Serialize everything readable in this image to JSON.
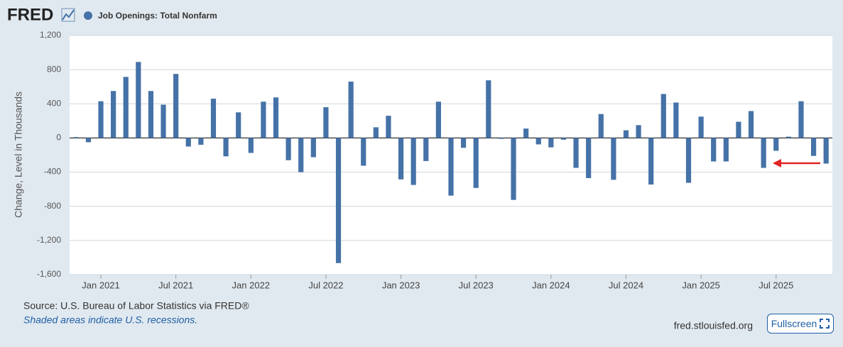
{
  "chart_data": {
    "type": "bar",
    "brand": "FRED",
    "title": "Job Openings: Total Nonfarm",
    "ylabel": "Change, Level in Thousands",
    "source": "Source: U.S. Bureau of Labor Statistics via FRED®",
    "note": "Shaded areas indicate U.S. recessions.",
    "site": "fred.stlouisfed.org",
    "button": "Fullscreen",
    "color": "#4572a7",
    "grid": true,
    "ylim": [
      -1600,
      1200
    ],
    "yticks": [
      {
        "value": 1200,
        "label": "1,200"
      },
      800,
      400,
      0,
      -400,
      -800,
      {
        "value": -1200,
        "label": "-1,200"
      },
      {
        "value": -1600,
        "label": "-1,600"
      }
    ],
    "categories": [
      null,
      null,
      "Jan 2021",
      null,
      null,
      null,
      null,
      null,
      "Jul 2021",
      null,
      null,
      null,
      null,
      null,
      "Jan 2022",
      null,
      null,
      null,
      null,
      null,
      "Jul 2022",
      null,
      null,
      null,
      null,
      null,
      "Jan 2023",
      null,
      null,
      null,
      null,
      null,
      "Jul 2023",
      null,
      null,
      null,
      null,
      null,
      "Jan 2024",
      null,
      null,
      null,
      null,
      null,
      "Jul 2024",
      null,
      null,
      null,
      null,
      null,
      "Jan 2025",
      null,
      null,
      null,
      null,
      null,
      "Jul 2025",
      null,
      null,
      null,
      null
    ],
    "values": [
      10,
      -50,
      430,
      550,
      715,
      890,
      550,
      390,
      750,
      -100,
      -80,
      460,
      -215,
      300,
      -175,
      425,
      475,
      -260,
      -400,
      -225,
      360,
      -1465,
      660,
      -325,
      125,
      260,
      -485,
      -550,
      -270,
      425,
      -675,
      -115,
      -585,
      675,
      -10,
      -725,
      110,
      -75,
      -110,
      -20,
      -350,
      -470,
      280,
      -490,
      90,
      150,
      -545,
      515,
      415,
      -525,
      250,
      -275,
      -275,
      190,
      315,
      -350,
      -150,
      15,
      430,
      -210,
      -300
    ]
  }
}
